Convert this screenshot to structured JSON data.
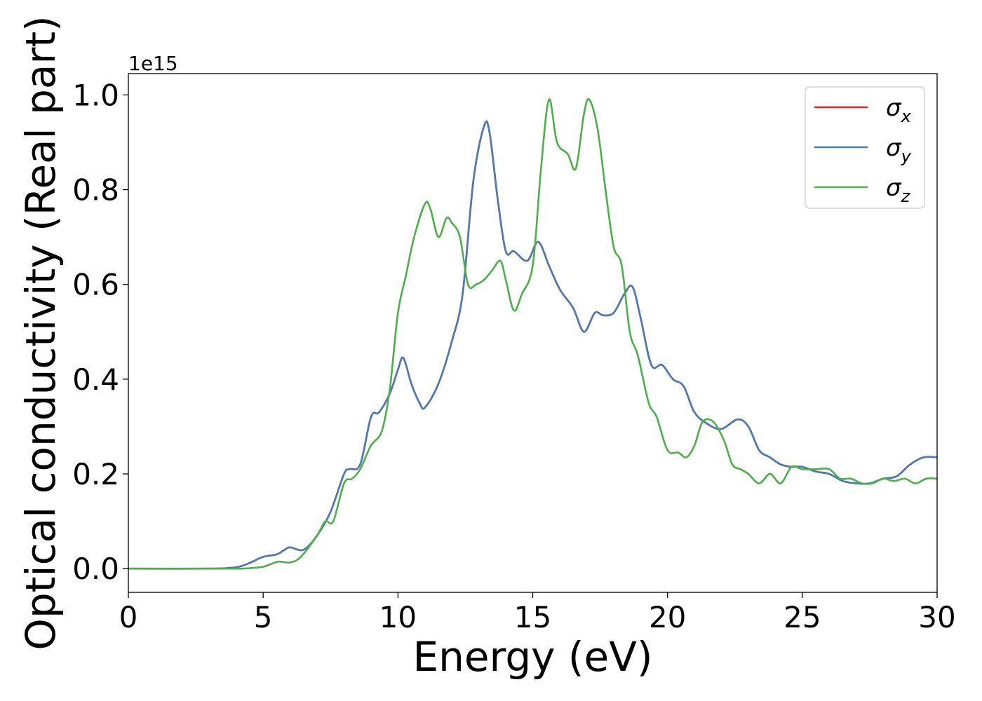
{
  "chart_data": {
    "type": "line",
    "xlabel": "Energy (eV)",
    "ylabel": "Optical conductivity (Real part)",
    "y_offset_label": "1e15",
    "xlim": [
      0,
      30
    ],
    "ylim": [
      -0.05,
      1.045
    ],
    "xticks": [
      0,
      5,
      10,
      15,
      20,
      25,
      30
    ],
    "xtick_labels": [
      "0",
      "5",
      "10",
      "15",
      "20",
      "25",
      "30"
    ],
    "yticks": [
      0.0,
      0.2,
      0.4,
      0.6,
      0.8,
      1.0
    ],
    "ytick_labels": [
      "0.0",
      "0.2",
      "0.4",
      "0.6",
      "0.8",
      "1.0"
    ],
    "grid": false,
    "legend_position": "top-right",
    "series": [
      {
        "name": "σ",
        "subscript": "x",
        "color": "#d62728",
        "x": [
          0,
          3,
          4,
          4.5,
          5,
          5.5,
          5.8,
          6,
          6.5,
          7,
          7.5,
          8,
          8.2,
          8.6,
          9,
          9.3,
          9.7,
          10,
          10.2,
          10.5,
          10.8,
          11,
          11.5,
          12,
          12.4,
          12.8,
          13.2,
          13.4,
          13.7,
          14,
          14.3,
          14.8,
          15.2,
          15.6,
          16,
          16.5,
          16.9,
          17.3,
          17.6,
          18,
          18.4,
          18.7,
          19,
          19.4,
          19.8,
          20.2,
          20.6,
          21,
          21.5,
          22,
          22.6,
          23,
          23.4,
          23.8,
          24.2,
          24.6,
          25,
          25.5,
          26,
          26.5,
          27,
          27.5,
          28,
          28.5,
          29,
          29.5,
          30
        ],
        "y": [
          0.0,
          0.0,
          0.003,
          0.012,
          0.025,
          0.03,
          0.04,
          0.045,
          0.04,
          0.07,
          0.12,
          0.2,
          0.21,
          0.22,
          0.32,
          0.33,
          0.37,
          0.42,
          0.445,
          0.39,
          0.35,
          0.34,
          0.39,
          0.48,
          0.58,
          0.82,
          0.935,
          0.92,
          0.78,
          0.67,
          0.67,
          0.65,
          0.69,
          0.64,
          0.59,
          0.55,
          0.5,
          0.54,
          0.535,
          0.54,
          0.58,
          0.595,
          0.53,
          0.43,
          0.43,
          0.4,
          0.385,
          0.33,
          0.305,
          0.295,
          0.315,
          0.3,
          0.25,
          0.235,
          0.22,
          0.215,
          0.215,
          0.205,
          0.2,
          0.185,
          0.18,
          0.18,
          0.19,
          0.195,
          0.22,
          0.235,
          0.235
        ]
      },
      {
        "name": "σ",
        "subscript": "y",
        "color": "#4a7bb5",
        "x": [
          0,
          3,
          4,
          4.5,
          5,
          5.5,
          5.8,
          6,
          6.5,
          7,
          7.5,
          8,
          8.2,
          8.6,
          9,
          9.3,
          9.7,
          10,
          10.2,
          10.5,
          10.8,
          11,
          11.5,
          12,
          12.4,
          12.8,
          13.2,
          13.4,
          13.7,
          14,
          14.3,
          14.8,
          15.2,
          15.6,
          16,
          16.5,
          16.9,
          17.3,
          17.6,
          18,
          18.4,
          18.7,
          19,
          19.4,
          19.8,
          20.2,
          20.6,
          21,
          21.5,
          22,
          22.6,
          23,
          23.4,
          23.8,
          24.2,
          24.6,
          25,
          25.5,
          26,
          26.5,
          27,
          27.5,
          28,
          28.5,
          29,
          29.5,
          30
        ],
        "y": [
          0.0,
          0.0,
          0.003,
          0.012,
          0.025,
          0.03,
          0.04,
          0.045,
          0.04,
          0.07,
          0.12,
          0.2,
          0.21,
          0.22,
          0.32,
          0.33,
          0.37,
          0.42,
          0.445,
          0.39,
          0.35,
          0.34,
          0.39,
          0.48,
          0.58,
          0.82,
          0.935,
          0.92,
          0.78,
          0.67,
          0.67,
          0.65,
          0.69,
          0.64,
          0.59,
          0.55,
          0.5,
          0.54,
          0.535,
          0.54,
          0.58,
          0.595,
          0.53,
          0.43,
          0.43,
          0.4,
          0.385,
          0.33,
          0.305,
          0.295,
          0.315,
          0.3,
          0.25,
          0.235,
          0.22,
          0.215,
          0.215,
          0.205,
          0.2,
          0.185,
          0.18,
          0.18,
          0.19,
          0.195,
          0.22,
          0.235,
          0.235
        ]
      },
      {
        "name": "σ",
        "subscript": "z",
        "color": "#4daf4a",
        "x": [
          0,
          3,
          4,
          4.5,
          5,
          5.3,
          5.6,
          6,
          6.4,
          7,
          7.3,
          7.6,
          8,
          8.3,
          8.6,
          9,
          9.4,
          9.7,
          10,
          10.3,
          10.6,
          11,
          11.2,
          11.5,
          11.8,
          12,
          12.3,
          12.6,
          12.9,
          13.2,
          13.5,
          13.8,
          14,
          14.3,
          14.6,
          15,
          15.3,
          15.6,
          15.9,
          16.3,
          16.6,
          16.9,
          17.1,
          17.4,
          17.7,
          18,
          18.3,
          18.6,
          18.9,
          19.3,
          19.6,
          20,
          20.4,
          20.7,
          21,
          21.3,
          21.7,
          22.1,
          22.4,
          22.7,
          23,
          23.4,
          23.8,
          24.2,
          24.6,
          25,
          25.5,
          26,
          26.4,
          26.8,
          27.2,
          27.6,
          28,
          28.4,
          28.8,
          29.2,
          29.6,
          30
        ],
        "y": [
          0.0,
          0.0,
          0.0,
          0.001,
          0.004,
          0.01,
          0.015,
          0.013,
          0.025,
          0.07,
          0.1,
          0.1,
          0.18,
          0.19,
          0.21,
          0.26,
          0.29,
          0.38,
          0.54,
          0.62,
          0.7,
          0.77,
          0.76,
          0.7,
          0.74,
          0.73,
          0.7,
          0.6,
          0.6,
          0.61,
          0.63,
          0.65,
          0.61,
          0.545,
          0.58,
          0.64,
          0.84,
          0.99,
          0.9,
          0.875,
          0.845,
          0.96,
          0.99,
          0.93,
          0.8,
          0.68,
          0.64,
          0.5,
          0.45,
          0.35,
          0.32,
          0.25,
          0.245,
          0.235,
          0.26,
          0.31,
          0.31,
          0.27,
          0.22,
          0.21,
          0.2,
          0.18,
          0.2,
          0.18,
          0.215,
          0.21,
          0.21,
          0.21,
          0.19,
          0.19,
          0.18,
          0.18,
          0.19,
          0.185,
          0.19,
          0.18,
          0.19,
          0.19
        ]
      }
    ]
  }
}
